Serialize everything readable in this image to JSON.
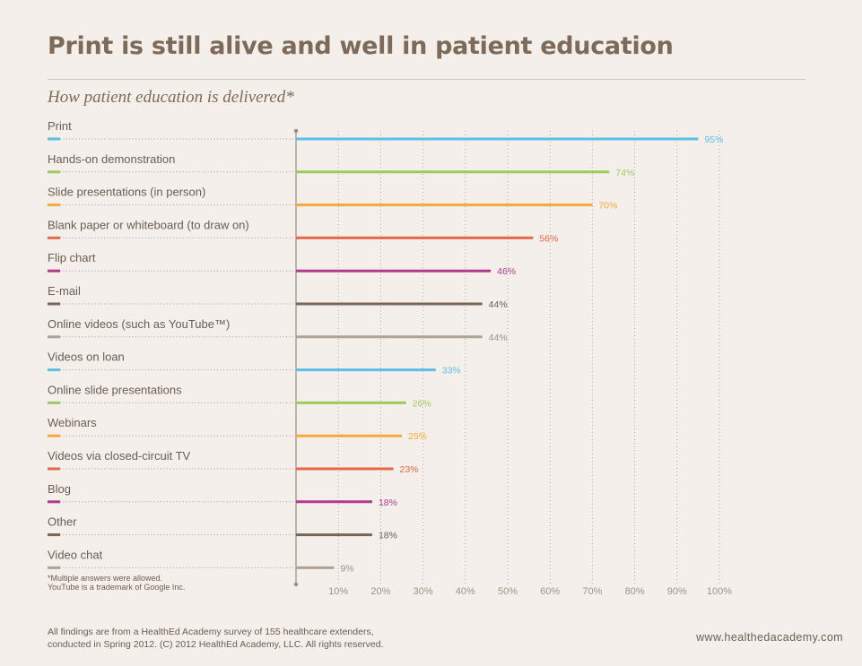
{
  "title": "Print is still alive and well in patient education",
  "subtitle": "How patient education is delivered*",
  "footnote": {
    "line1": "*Multiple answers were allowed.",
    "line2": " YouTube is a trademark of Google Inc."
  },
  "footer": {
    "line1": "All findings are from a HealthEd Academy survey of 155 healthcare extenders,",
    "line2": "conducted in Spring 2012.  (C) 2012 HealthEd Academy, LLC. All rights reserved."
  },
  "website": "www.healthedacademy.com",
  "chart_data": {
    "type": "bar",
    "orientation": "horizontal",
    "title": "How patient education is delivered*",
    "xlim": [
      0,
      100
    ],
    "x_ticks": [
      "10%",
      "20%",
      "30%",
      "40%",
      "50%",
      "60%",
      "70%",
      "80%",
      "90%",
      "100%"
    ],
    "grid": true,
    "categories": [
      "Print",
      "Hands-on demonstration",
      "Slide presentations (in person)",
      "Blank paper or whiteboard (to draw on)",
      "Flip chart",
      "E-mail",
      "Online videos (such as YouTube™)",
      "Videos on loan",
      "Online slide presentations",
      "Webinars",
      "Videos via closed-circuit TV",
      "Blog",
      "Other",
      "Video chat"
    ],
    "values": [
      95,
      74,
      70,
      56,
      46,
      44,
      44,
      33,
      26,
      25,
      23,
      18,
      18,
      9
    ],
    "value_labels": [
      "95%",
      "74%",
      "70%",
      "56%",
      "46%",
      "44%",
      "44%",
      "33%",
      "26%",
      "25%",
      "23%",
      "18%",
      "18%",
      "9%"
    ],
    "colors": [
      "#5bc0e6",
      "#9ccb5e",
      "#f5a83c",
      "#e8674a",
      "#b23a8e",
      "#7a6655",
      "#b0a395",
      "#5bc0e6",
      "#9ccb5e",
      "#f5a83c",
      "#e8674a",
      "#b23a8e",
      "#7a6655",
      "#b0a395"
    ]
  }
}
